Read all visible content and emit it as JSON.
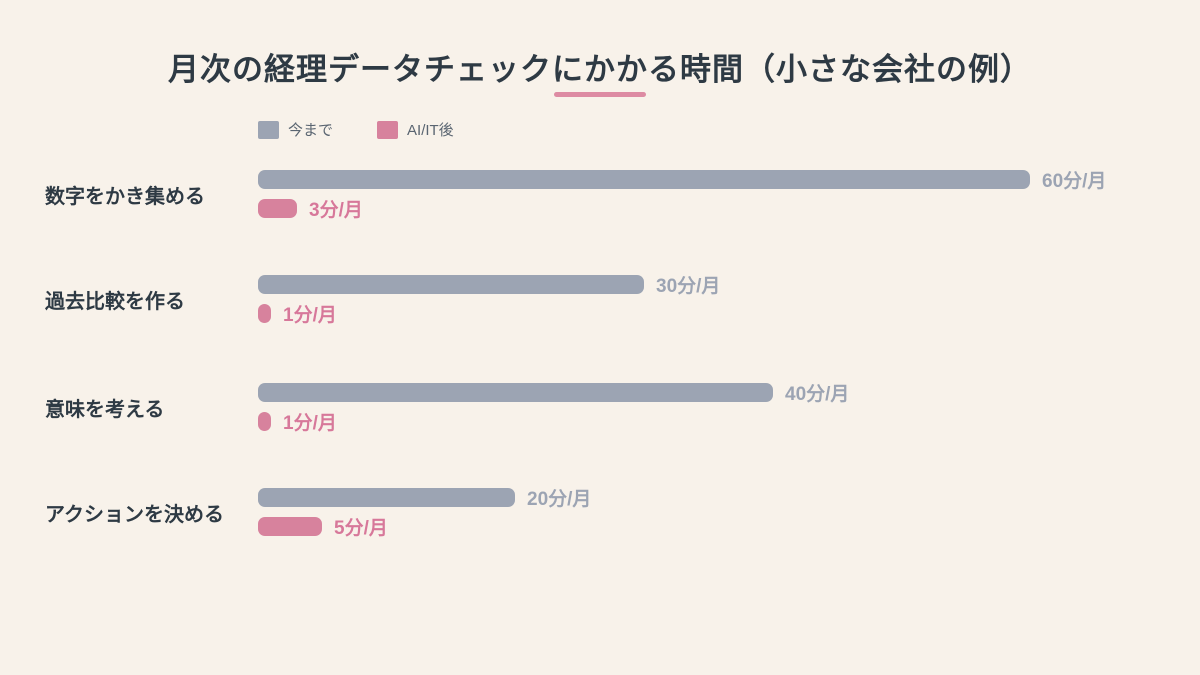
{
  "title": "月次の経理データチェックにかかる時間（小さな会社の例）",
  "colors": {
    "background": "#f8f2ea",
    "title": "#2e3a44",
    "underline": "#dd8ba3",
    "bar_now": "#9ca4b3",
    "bar_after": "#d7829d",
    "value_now": "#9ca4b3",
    "value_after": "#d7789a",
    "legend_text": "#5a6571"
  },
  "chart_data": {
    "type": "bar",
    "orientation": "horizontal",
    "title": "月次の経理データチェックにかかる時間（小さな会社の例）",
    "unit": "分/月",
    "categories": [
      "数字をかき集める",
      "過去比較を作る",
      "意味を考える",
      "アクションを決める"
    ],
    "series": [
      {
        "name": "今まで",
        "color": "#9ca4b3",
        "values": [
          60,
          30,
          40,
          20
        ],
        "labels": [
          "60分/月",
          "30分/月",
          "40分/月",
          "20分/月"
        ]
      },
      {
        "name": "AI/IT後",
        "color": "#d7829d",
        "values": [
          3,
          1,
          1,
          5
        ],
        "labels": [
          "3分/月",
          "1分/月",
          "1分/月",
          "5分/月"
        ]
      }
    ],
    "xlim": [
      0,
      60
    ],
    "grid": false,
    "legend_position": "top-left"
  }
}
